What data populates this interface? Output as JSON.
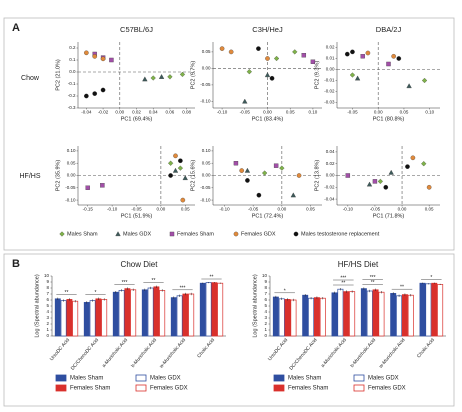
{
  "figure": {
    "panels": [
      "A",
      "B"
    ],
    "rows": [
      "Chow",
      "HF/HS"
    ],
    "groups": [
      {
        "name": "Males Sham",
        "color": "#7fb24a",
        "marker": "diamond"
      },
      {
        "name": "Males GDX",
        "color": "#3d5a5a",
        "marker": "triangle"
      },
      {
        "name": "Females Sham",
        "color": "#a24fa8",
        "marker": "square"
      },
      {
        "name": "Females GDX",
        "color": "#e08a3c",
        "marker": "circle"
      },
      {
        "name": "Males testosterone replacement",
        "color": "#111111",
        "marker": "circle"
      }
    ]
  },
  "chart_data": [
    {
      "type": "scatter",
      "title": "C57BL/6J",
      "xlabel": "PC1 (69.4%)",
      "ylabel": "PC2 (21.0%)",
      "xlim": [
        -0.05,
        0.09
      ],
      "ylim": [
        -0.3,
        0.25
      ],
      "xticks": [
        -0.04,
        -0.02,
        {
          "value": 0,
          "label": "0.00"
        },
        0.02,
        0.04,
        0.06,
        0.08
      ],
      "yticks": [
        -0.3,
        -0.2,
        -0.1,
        {
          "value": 0,
          "label": "0.0"
        },
        0.1,
        0.2
      ],
      "series": [
        {
          "x": [
            0.04,
            0.06,
            0.075
          ],
          "y": [
            -0.05,
            -0.04,
            -0.02
          ]
        },
        {
          "x": [
            0.03,
            0.05
          ],
          "y": [
            -0.06,
            -0.04
          ]
        },
        {
          "x": [
            -0.03,
            -0.02,
            -0.01
          ],
          "y": [
            0.15,
            0.12,
            0.1
          ]
        },
        {
          "x": [
            -0.04,
            -0.03,
            -0.02
          ],
          "y": [
            0.16,
            0.13,
            0.11
          ]
        },
        {
          "x": [
            -0.03,
            -0.04,
            -0.02
          ],
          "y": [
            -0.18,
            -0.2,
            -0.15
          ]
        }
      ]
    },
    {
      "type": "scatter",
      "title": "C3H/HeJ",
      "xlabel": "PC1 (83.4%)",
      "ylabel": "PC2 (9.7%)",
      "xlim": [
        -0.12,
        0.12
      ],
      "ylim": [
        -0.12,
        0.08
      ],
      "xticks": [
        {
          "value": -0.1,
          "label": "-0.10"
        },
        -0.05,
        {
          "value": 0,
          "label": "0.00"
        },
        0.05,
        {
          "value": 0.1,
          "label": "0.10"
        }
      ],
      "yticks": [
        {
          "value": -0.1,
          "label": "-0.10"
        },
        -0.05,
        {
          "value": 0,
          "label": "0.00"
        },
        0.05
      ],
      "series": [
        {
          "x": [
            0.02,
            0.06,
            -0.04
          ],
          "y": [
            0.03,
            0.05,
            -0.01
          ]
        },
        {
          "x": [
            0,
            -0.05
          ],
          "y": [
            -0.02,
            -0.1
          ]
        },
        {
          "x": [
            0.08,
            0.1
          ],
          "y": [
            0.04,
            0.02
          ]
        },
        {
          "x": [
            -0.08,
            -0.1,
            0
          ],
          "y": [
            0.05,
            0.06,
            0.03
          ]
        },
        {
          "x": [
            -0.02,
            0.01
          ],
          "y": [
            0.06,
            -0.03
          ]
        }
      ]
    },
    {
      "type": "scatter",
      "title": "DBA/2J",
      "xlabel": "PC1 (80.8%)",
      "ylabel": "PC2 (9.3%)",
      "xlim": [
        -0.08,
        0.12
      ],
      "ylim": [
        -0.035,
        0.025
      ],
      "xticks": [
        -0.05,
        {
          "value": 0,
          "label": "0.00"
        },
        0.05,
        {
          "value": 0.1,
          "label": "0.10"
        }
      ],
      "yticks": [
        -0.03,
        -0.02,
        -0.01,
        {
          "value": 0,
          "label": "0.00"
        },
        0.01,
        0.02
      ],
      "series": [
        {
          "x": [
            -0.05,
            0.09
          ],
          "y": [
            -0.005,
            -0.01
          ]
        },
        {
          "x": [
            -0.04,
            0.06
          ],
          "y": [
            -0.008,
            -0.015
          ]
        },
        {
          "x": [
            -0.03,
            0.02
          ],
          "y": [
            0.012,
            0.005
          ]
        },
        {
          "x": [
            -0.02,
            0.03
          ],
          "y": [
            0.015,
            0.012
          ]
        },
        {
          "x": [
            -0.06,
            -0.05,
            0.04
          ],
          "y": [
            0.014,
            0.016,
            0.01
          ]
        }
      ]
    },
    {
      "type": "scatter",
      "xlabel": "PC1 (51.9%)",
      "ylabel": "PC2 (35.9%)",
      "xlim": [
        -0.17,
        0.07
      ],
      "ylim": [
        -0.12,
        0.12
      ],
      "xticks": [
        -0.15,
        {
          "value": -0.1,
          "label": "-0.10"
        },
        -0.05,
        {
          "value": 0,
          "label": "0.00"
        },
        0.05
      ],
      "yticks": [
        {
          "value": -0.1,
          "label": "-0.10"
        },
        -0.05,
        {
          "value": 0,
          "label": "0.00"
        },
        0.05,
        {
          "value": 0.1,
          "label": "0.10"
        }
      ],
      "series": [
        {
          "x": [
            0.02,
            0.04
          ],
          "y": [
            0.05,
            0.03
          ]
        },
        {
          "x": [
            0.03,
            0.05
          ],
          "y": [
            0.02,
            -0.01
          ]
        },
        {
          "x": [
            -0.15,
            -0.12
          ],
          "y": [
            -0.05,
            -0.04
          ]
        },
        {
          "x": [
            0.03,
            0.045
          ],
          "y": [
            0.08,
            -0.1
          ]
        },
        {
          "x": [
            0.02,
            0.04
          ],
          "y": [
            0,
            0.06
          ]
        }
      ]
    },
    {
      "type": "scatter",
      "xlabel": "PC1 (72.4%)",
      "ylabel": "PC2 (15.6%)",
      "xlim": [
        -0.12,
        0.07
      ],
      "ylim": [
        -0.12,
        0.12
      ],
      "xticks": [
        {
          "value": -0.1,
          "label": "-0.10"
        },
        -0.05,
        {
          "value": 0,
          "label": "0.00"
        },
        0.05
      ],
      "yticks": [
        {
          "value": -0.1,
          "label": "-0.10"
        },
        -0.05,
        {
          "value": 0,
          "label": "0.00"
        },
        0.05,
        {
          "value": 0.1,
          "label": "0.10"
        }
      ],
      "series": [
        {
          "x": [
            0,
            -0.03
          ],
          "y": [
            0.03,
            0.01
          ]
        },
        {
          "x": [
            -0.06,
            0.02
          ],
          "y": [
            0.02,
            -0.08
          ]
        },
        {
          "x": [
            -0.08,
            -0.01
          ],
          "y": [
            0.05,
            0.04
          ]
        },
        {
          "x": [
            -0.07,
            0.03
          ],
          "y": [
            0.02,
            0
          ]
        },
        {
          "x": [
            -0.04,
            -0.06
          ],
          "y": [
            -0.08,
            -0.02
          ]
        }
      ]
    },
    {
      "type": "scatter",
      "xlabel": "PC1 (71.8%)",
      "ylabel": "PC2 (13.8%)",
      "xlim": [
        -0.12,
        0.07
      ],
      "ylim": [
        -0.05,
        0.05
      ],
      "xticks": [
        {
          "value": -0.1,
          "label": "-0.10"
        },
        -0.05,
        {
          "value": 0,
          "label": "0.00"
        },
        0.05
      ],
      "yticks": [
        -0.04,
        -0.02,
        {
          "value": 0,
          "label": "0.00"
        },
        0.02,
        0.04
      ],
      "series": [
        {
          "x": [
            -0.04,
            0.04
          ],
          "y": [
            -0.01,
            0.02
          ]
        },
        {
          "x": [
            -0.02,
            -0.06
          ],
          "y": [
            0.005,
            -0.015
          ]
        },
        {
          "x": [
            -0.1,
            -0.05
          ],
          "y": [
            0,
            -0.01
          ]
        },
        {
          "x": [
            0.05,
            0.02
          ],
          "y": [
            -0.02,
            0.03
          ]
        },
        {
          "x": [
            -0.03,
            0.01
          ],
          "y": [
            -0.02,
            0.015
          ]
        }
      ]
    },
    {
      "type": "bar",
      "title": "Chow Diet",
      "ylabel": "Log (Spectral abundance)",
      "categories": [
        "UrsoDC Acid",
        "DC/ChenoDC Acid",
        "a-Muricholic Acid",
        "b-Muricholic Acid",
        "w-Muricholic Acid",
        "Cholic Acid"
      ],
      "ylim": [
        0,
        10
      ],
      "yticks": [
        0,
        1,
        2,
        3,
        4,
        5,
        6,
        7,
        8,
        9,
        10
      ],
      "series": [
        {
          "name": "Males Sham",
          "color": "#2f4ea0",
          "hollow": false,
          "values": [
            6.2,
            5.6,
            7.3,
            7.7,
            6.4,
            8.8
          ],
          "errors": [
            0.2,
            0.2,
            0.2,
            0.2,
            0.2,
            0.1
          ]
        },
        {
          "name": "Males GDX",
          "color": "#2f4ea0",
          "hollow": true,
          "values": [
            5.9,
            5.9,
            7.6,
            8.0,
            6.7,
            8.9
          ],
          "errors": [
            0.2,
            0.2,
            0.2,
            0.2,
            0.2,
            0.1
          ]
        },
        {
          "name": "Females Sham",
          "color": "#d9302c",
          "hollow": false,
          "values": [
            6.1,
            6.2,
            7.9,
            8.2,
            7.0,
            8.9
          ],
          "errors": [
            0.2,
            0.2,
            0.2,
            0.2,
            0.2,
            0.1
          ]
        },
        {
          "name": "Females GDX",
          "color": "#d9302c",
          "hollow": true,
          "values": [
            5.8,
            6.1,
            7.7,
            7.6,
            7.0,
            8.8
          ],
          "errors": [
            0.2,
            0.2,
            0.2,
            0.2,
            0.2,
            0.1
          ]
        }
      ],
      "annotations": [
        {
          "text": "**",
          "category": "UrsoDC Acid"
        },
        {
          "text": "*",
          "category": "DC/ChenoDC Acid"
        },
        {
          "text": "***",
          "category": "a-Muricholic Acid"
        },
        {
          "text": "**",
          "category": "b-Muricholic Acid"
        },
        {
          "text": "***",
          "category": "w-Muricholic Acid"
        },
        {
          "text": "**",
          "category": "Cholic Acid"
        }
      ]
    },
    {
      "type": "bar",
      "title": "HF/HS Diet",
      "ylabel": "Log (Spectral abundance)",
      "categories": [
        "UrsoDC Acid",
        "DC/ChenoDC Acid",
        "a-Muricholic Acid",
        "b-Muricholic Acid",
        "w-Muricholic Acid",
        "Cholic Acid"
      ],
      "ylim": [
        0,
        10
      ],
      "yticks": [
        0,
        1,
        2,
        3,
        4,
        5,
        6,
        7,
        8,
        9,
        10
      ],
      "series": [
        {
          "name": "Males Sham",
          "color": "#2f4ea0",
          "hollow": false,
          "values": [
            6.5,
            6.8,
            7.2,
            7.9,
            7.1,
            8.8
          ],
          "errors": [
            0.2,
            0.2,
            0.2,
            0.2,
            0.2,
            0.1
          ]
        },
        {
          "name": "Males GDX",
          "color": "#2f4ea0",
          "hollow": true,
          "values": [
            6.2,
            6.3,
            7.8,
            7.5,
            6.7,
            8.7
          ],
          "errors": [
            0.2,
            0.2,
            0.2,
            0.2,
            0.2,
            0.1
          ]
        },
        {
          "name": "Females Sham",
          "color": "#d9302c",
          "hollow": false,
          "values": [
            6.1,
            6.4,
            7.4,
            7.7,
            6.9,
            8.8
          ],
          "errors": [
            0.2,
            0.2,
            0.2,
            0.2,
            0.2,
            0.1
          ]
        },
        {
          "name": "Females GDX",
          "color": "#d9302c",
          "hollow": true,
          "values": [
            6.0,
            6.3,
            7.4,
            7.3,
            6.8,
            8.6
          ],
          "errors": [
            0.2,
            0.2,
            0.2,
            0.2,
            0.2,
            0.1
          ]
        }
      ],
      "annotations": [
        {
          "text": "*",
          "category": "UrsoDC Acid"
        },
        {
          "text": "**",
          "category": "a-Muricholic Acid"
        },
        {
          "text": "***",
          "category": "a-Muricholic Acid"
        },
        {
          "text": "**",
          "category": "b-Muricholic Acid"
        },
        {
          "text": "***",
          "category": "b-Muricholic Acid"
        },
        {
          "text": "**",
          "category": "w-Muricholic Acid"
        },
        {
          "text": "*",
          "category": "Cholic Acid"
        }
      ]
    }
  ]
}
